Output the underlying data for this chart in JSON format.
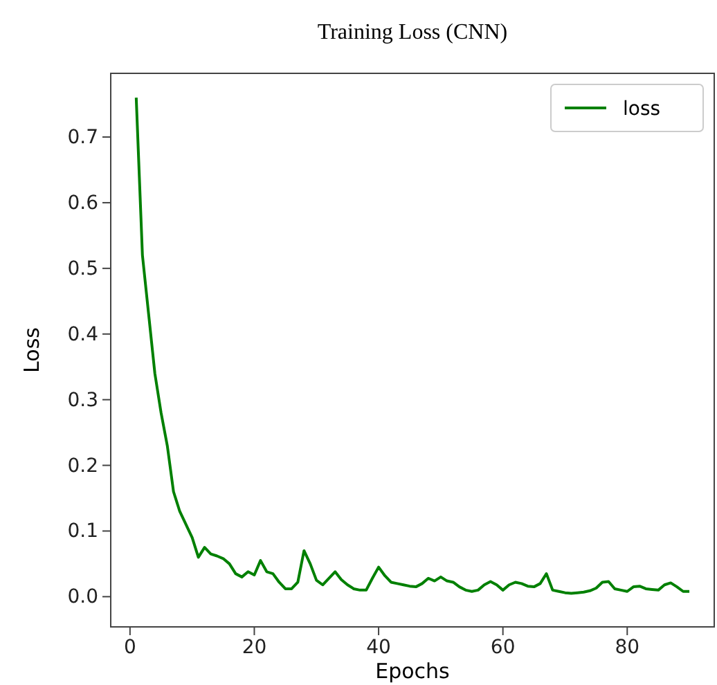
{
  "chart_data": {
    "type": "line",
    "title": "Training Loss (CNN)",
    "xlabel": "Epochs",
    "ylabel": "Loss",
    "x": [
      1,
      2,
      3,
      4,
      5,
      6,
      7,
      8,
      9,
      10,
      11,
      12,
      13,
      14,
      15,
      16,
      17,
      18,
      19,
      20,
      21,
      22,
      23,
      24,
      25,
      26,
      27,
      28,
      29,
      30,
      31,
      32,
      33,
      34,
      35,
      36,
      37,
      38,
      39,
      40,
      41,
      42,
      43,
      44,
      45,
      46,
      47,
      48,
      49,
      50,
      51,
      52,
      53,
      54,
      55,
      56,
      57,
      58,
      59,
      60,
      61,
      62,
      63,
      64,
      65,
      66,
      67,
      68,
      69,
      70,
      71,
      72,
      73,
      74,
      75,
      76,
      77,
      78,
      79,
      80,
      81,
      82,
      83,
      84,
      85,
      86,
      87,
      88,
      89,
      90
    ],
    "series": [
      {
        "name": "loss",
        "color": "#008000",
        "values": [
          0.76,
          0.52,
          0.43,
          0.34,
          0.28,
          0.23,
          0.16,
          0.13,
          0.11,
          0.09,
          0.06,
          0.075,
          0.065,
          0.062,
          0.058,
          0.05,
          0.035,
          0.03,
          0.038,
          0.033,
          0.055,
          0.038,
          0.035,
          0.022,
          0.012,
          0.012,
          0.022,
          0.07,
          0.05,
          0.025,
          0.018,
          0.028,
          0.038,
          0.026,
          0.018,
          0.012,
          0.01,
          0.01,
          0.028,
          0.045,
          0.032,
          0.022,
          0.02,
          0.018,
          0.016,
          0.015,
          0.02,
          0.028,
          0.024,
          0.03,
          0.024,
          0.022,
          0.015,
          0.01,
          0.008,
          0.01,
          0.018,
          0.023,
          0.018,
          0.01,
          0.018,
          0.022,
          0.02,
          0.016,
          0.015,
          0.02,
          0.035,
          0.01,
          0.008,
          0.006,
          0.005,
          0.006,
          0.007,
          0.009,
          0.013,
          0.022,
          0.023,
          0.012,
          0.01,
          0.008,
          0.015,
          0.016,
          0.012,
          0.011,
          0.01,
          0.018,
          0.021,
          0.015,
          0.008,
          0.008
        ]
      }
    ],
    "xlim": [
      -3.1,
      94
    ],
    "ylim": [
      -0.046,
      0.797
    ],
    "xticks": [
      0,
      20,
      40,
      60,
      80
    ],
    "yticks": [
      {
        "value": 0,
        "label": "0.0"
      },
      {
        "value": 0.1,
        "label": "0.1"
      },
      {
        "value": 0.2,
        "label": "0.2"
      },
      {
        "value": 0.3,
        "label": "0.3"
      },
      {
        "value": 0.4,
        "label": "0.4"
      },
      {
        "value": 0.5,
        "label": "0.5"
      },
      {
        "value": 0.6,
        "label": "0.6"
      },
      {
        "value": 0.7,
        "label": "0.7"
      }
    ],
    "legend": "top right",
    "grid": false,
    "marker": "none",
    "line_style": "solid"
  }
}
